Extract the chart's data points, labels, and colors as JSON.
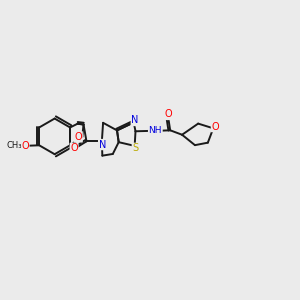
{
  "bg_color": "#ebebeb",
  "bond_color": "#1a1a1a",
  "O_color": "#ff0000",
  "N_color": "#0000dd",
  "S_color": "#bbaa00",
  "figsize": [
    3.0,
    3.0
  ],
  "dpi": 100,
  "xlim": [
    0,
    12
  ],
  "ylim": [
    0,
    10
  ]
}
